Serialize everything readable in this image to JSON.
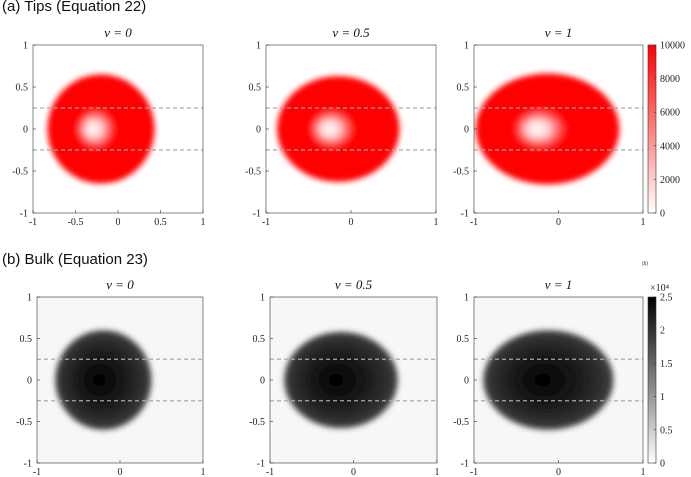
{
  "panel_labels": [
    "(a) Tips (Equation 22)",
    "(b) Bulk (Equation 23)"
  ],
  "note": "(b)",
  "chart_data": [
    {
      "type": "heatmap",
      "title": "ν = 0",
      "xlim": [
        -1,
        1
      ],
      "ylim": [
        -1,
        1
      ],
      "xticks": [
        -1,
        -0.5,
        0,
        0.5,
        1
      ],
      "yticks": [
        -1,
        -0.5,
        0,
        0.5,
        1
      ],
      "hlines": [
        0.25,
        -0.25
      ],
      "colormap": [
        "#ffffff",
        "#ff0000"
      ]
    },
    {
      "type": "heatmap",
      "title": "ν = 0.5",
      "xlim": [
        -1,
        1
      ],
      "ylim": [
        -1,
        1
      ],
      "xticks": [
        -1,
        0,
        1
      ],
      "yticks": [
        -1,
        -0.5,
        0,
        0.5,
        1
      ],
      "hlines": [
        0.25,
        -0.25
      ],
      "colormap": [
        "#ffffff",
        "#ff0000"
      ]
    },
    {
      "type": "heatmap",
      "title": "ν = 1",
      "xlim": [
        -1,
        1
      ],
      "ylim": [
        -1,
        1
      ],
      "xticks": [
        -1,
        0,
        1
      ],
      "yticks": [
        -1,
        -0.5,
        0,
        0.5,
        1
      ],
      "hlines": [
        0.25,
        -0.25
      ],
      "colormap": [
        "#ffffff",
        "#ff0000"
      ],
      "colorbar": {
        "clim": [
          0,
          10000
        ],
        "cticks": [
          0,
          2000,
          4000,
          6000,
          8000,
          10000
        ]
      }
    },
    {
      "type": "heatmap",
      "title": "ν = 0",
      "xlim": [
        -1,
        1
      ],
      "ylim": [
        -1,
        1
      ],
      "xticks": [
        -1,
        0,
        1
      ],
      "yticks": [
        -1,
        -0.5,
        0,
        0.5,
        1
      ],
      "hlines": [
        0.25,
        -0.25
      ],
      "colormap": [
        "#ffffff",
        "#000000"
      ]
    },
    {
      "type": "heatmap",
      "title": "ν = 0.5",
      "xlim": [
        -1,
        1
      ],
      "ylim": [
        -1,
        1
      ],
      "xticks": [
        -1,
        0,
        1
      ],
      "yticks": [
        -1,
        -0.5,
        0,
        0.5,
        1
      ],
      "hlines": [
        0.25,
        -0.25
      ],
      "colormap": [
        "#ffffff",
        "#000000"
      ]
    },
    {
      "type": "heatmap",
      "title": "ν = 1",
      "xlim": [
        -1,
        1
      ],
      "ylim": [
        -1,
        1
      ],
      "xticks": [
        -1,
        0,
        1
      ],
      "yticks": [
        -1,
        -0.5,
        0,
        0.5,
        1
      ],
      "hlines": [
        0.25,
        -0.25
      ],
      "colormap": [
        "#ffffff",
        "#000000"
      ],
      "colorbar": {
        "clim": [
          0,
          2.5
        ],
        "cticks": [
          0,
          0.5,
          1,
          1.5,
          2,
          2.5
        ],
        "exponent_label": "×10⁴"
      }
    }
  ]
}
